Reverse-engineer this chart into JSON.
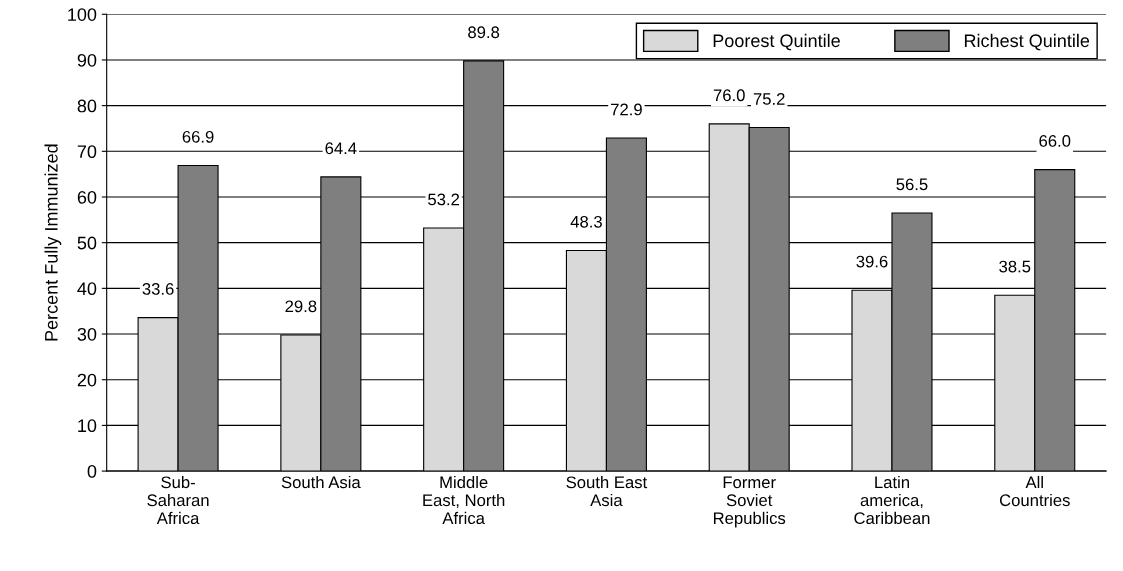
{
  "chart_data": {
    "type": "bar",
    "ylabel": "Percent Fully Immunized",
    "categories": [
      "Sub-\nSaharan\nAfrica",
      "South Asia",
      "Middle\nEast, North\nAfrica",
      "South East\nAsia",
      "Former\nSoviet\nRepublics",
      "Latin\namerica,\nCaribbean",
      "All\nCountries"
    ],
    "series": [
      {
        "name": "Poorest Quintile",
        "color": "#d9d9d9",
        "values": [
          33.6,
          29.8,
          53.2,
          48.3,
          76.0,
          39.6,
          38.5
        ],
        "value_labels": [
          "33.6",
          "29.8",
          "53.2",
          "48.3",
          "76.0",
          "39.6",
          "38.5"
        ]
      },
      {
        "name": "Richest Quintile",
        "color": "#7f7f7f",
        "values": [
          66.9,
          64.4,
          89.8,
          72.9,
          75.2,
          56.5,
          66.0
        ],
        "value_labels": [
          "66.9",
          "64.4",
          "89.8",
          "72.9",
          "75.2",
          "56.5",
          "66.0"
        ]
      }
    ],
    "ylim": [
      0,
      100
    ],
    "yticks": [
      0,
      10,
      20,
      30,
      40,
      50,
      60,
      70,
      80,
      90,
      100
    ],
    "grid": "y",
    "legend": "top right"
  }
}
